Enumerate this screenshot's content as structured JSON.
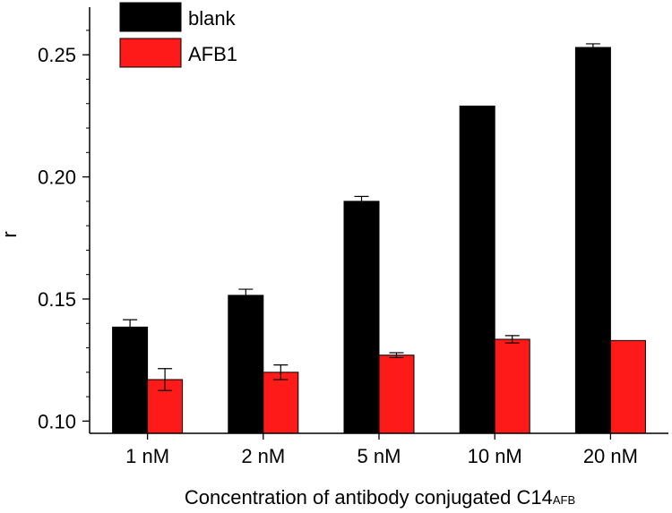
{
  "chart_data": {
    "type": "bar",
    "categories": [
      "1 nM",
      "2 nM",
      "5 nM",
      "10 nM",
      "20 nM"
    ],
    "series": [
      {
        "name": "blank",
        "color": "#000000",
        "values": [
          0.1385,
          0.1515,
          0.19,
          0.229,
          0.253
        ],
        "errors": [
          0.003,
          0.0025,
          0.002,
          0.0,
          0.0015
        ]
      },
      {
        "name": "AFB1",
        "color": "#ff1a1a",
        "values": [
          0.117,
          0.12,
          0.127,
          0.1335,
          0.133
        ],
        "errors": [
          0.0045,
          0.003,
          0.001,
          0.0015,
          0.0
        ]
      }
    ],
    "xlabel": "Concentration of antibody conjugated C14",
    "xlabel_subscript": "AFB",
    "ylabel": "r",
    "ylim": [
      0.095,
      0.2695
    ],
    "yticks": [
      0.1,
      0.15,
      0.2,
      0.25
    ],
    "ytick_labels": [
      "0.10",
      "0.15",
      "0.20",
      "0.25"
    ],
    "legend_position": "top-left"
  }
}
